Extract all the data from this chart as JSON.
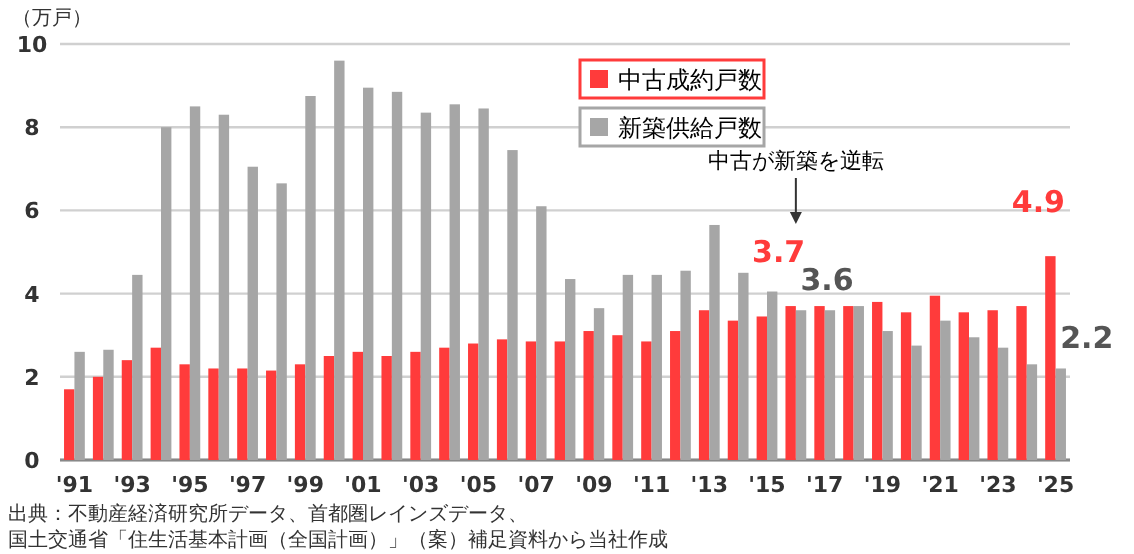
{
  "chart_data": {
    "type": "bar",
    "ylabel": "（万戸）",
    "categories": [
      "'91",
      null,
      "'93",
      null,
      "'95",
      null,
      "'97",
      null,
      "'99",
      null,
      "'01",
      null,
      "'03",
      null,
      "'05",
      null,
      "'07",
      null,
      "'09",
      null,
      "'11",
      null,
      "'13",
      null,
      "'15",
      null,
      "'17",
      null,
      "'19",
      null,
      "'21",
      null,
      "'23",
      null,
      "'25"
    ],
    "series": [
      {
        "name": "中古成約戸数",
        "color": "#ff3b3b",
        "values": [
          1.7,
          2.0,
          2.4,
          2.7,
          2.3,
          2.2,
          2.2,
          2.15,
          2.3,
          2.5,
          2.6,
          2.5,
          2.6,
          2.7,
          2.8,
          2.9,
          2.85,
          2.85,
          3.1,
          3.0,
          2.85,
          3.1,
          3.6,
          3.35,
          3.45,
          3.7,
          3.7,
          3.7,
          3.8,
          3.55,
          3.95,
          3.55,
          3.6,
          3.7,
          4.9
        ],
        "value_labels": [
          null,
          null,
          null,
          null,
          null,
          null,
          null,
          null,
          null,
          null,
          null,
          null,
          null,
          null,
          null,
          null,
          null,
          null,
          null,
          null,
          null,
          null,
          null,
          null,
          null,
          "3.7",
          null,
          null,
          null,
          null,
          null,
          null,
          null,
          null,
          "4.9"
        ]
      },
      {
        "name": "新築供給戸数",
        "color": "#a6a6a6",
        "values": [
          2.6,
          2.65,
          4.45,
          8.0,
          8.5,
          8.3,
          7.05,
          6.65,
          8.75,
          9.6,
          8.95,
          8.85,
          8.35,
          8.55,
          8.45,
          7.45,
          6.1,
          4.35,
          3.65,
          4.45,
          4.45,
          4.55,
          5.65,
          4.5,
          4.05,
          3.6,
          3.6,
          3.7,
          3.1,
          2.75,
          3.35,
          2.95,
          2.7,
          2.3,
          2.2
        ],
        "value_labels": [
          null,
          null,
          null,
          null,
          null,
          null,
          null,
          null,
          null,
          null,
          null,
          null,
          null,
          null,
          null,
          null,
          null,
          null,
          null,
          null,
          null,
          null,
          null,
          null,
          null,
          "3.6",
          null,
          null,
          null,
          null,
          null,
          null,
          null,
          null,
          "2.2"
        ]
      }
    ],
    "legend": "top",
    "ylim": [
      0,
      10
    ],
    "yticks": [
      0,
      2,
      4,
      6,
      8,
      10
    ],
    "grid": "y",
    "annotations": [
      "中古が新築を逆転",
      "出典：不動産経済研究所データ、首都圏レインズデータ、国土交通省「住生活基本計画（全国計画）」（案）補足資料から当社作成"
    ]
  }
}
